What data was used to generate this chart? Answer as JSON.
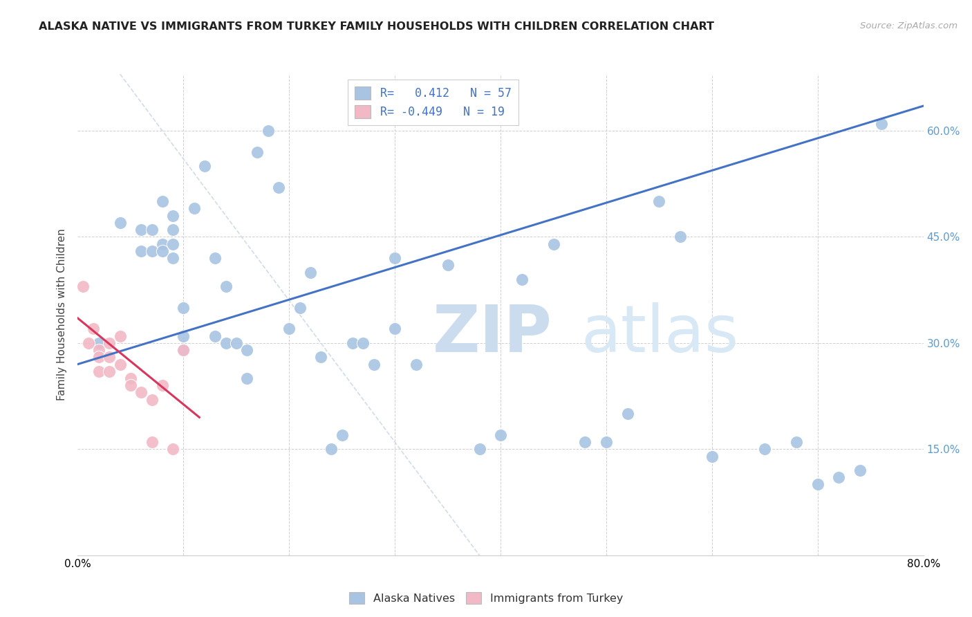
{
  "title": "ALASKA NATIVE VS IMMIGRANTS FROM TURKEY FAMILY HOUSEHOLDS WITH CHILDREN CORRELATION CHART",
  "source": "Source: ZipAtlas.com",
  "ylabel": "Family Households with Children",
  "xlim": [
    0.0,
    0.8
  ],
  "ylim": [
    0.0,
    0.68
  ],
  "xticks": [
    0.0,
    0.1,
    0.2,
    0.3,
    0.4,
    0.5,
    0.6,
    0.7,
    0.8
  ],
  "xticklabels": [
    "0.0%",
    "",
    "",
    "",
    "",
    "",
    "",
    "",
    "80.0%"
  ],
  "yticks": [
    0.0,
    0.15,
    0.3,
    0.45,
    0.6
  ],
  "yticklabels_right": [
    "",
    "15.0%",
    "30.0%",
    "45.0%",
    "60.0%"
  ],
  "blue_color": "#a8c4e2",
  "pink_color": "#f2b8c6",
  "blue_line_color": "#4472c4",
  "pink_line_color": "#d9365e",
  "diag_line_color": "#d0dde8",
  "legend_R_blue": "0.412",
  "legend_N_blue": "57",
  "legend_R_pink": "-0.449",
  "legend_N_pink": "19",
  "legend_label_blue": "Alaska Natives",
  "legend_label_pink": "Immigrants from Turkey",
  "blue_scatter_x": [
    0.02,
    0.04,
    0.06,
    0.06,
    0.07,
    0.07,
    0.08,
    0.08,
    0.08,
    0.09,
    0.09,
    0.09,
    0.09,
    0.1,
    0.1,
    0.1,
    0.11,
    0.12,
    0.13,
    0.13,
    0.14,
    0.14,
    0.15,
    0.16,
    0.16,
    0.17,
    0.18,
    0.19,
    0.2,
    0.21,
    0.22,
    0.23,
    0.24,
    0.25,
    0.26,
    0.27,
    0.28,
    0.3,
    0.3,
    0.32,
    0.35,
    0.38,
    0.4,
    0.42,
    0.45,
    0.48,
    0.5,
    0.52,
    0.55,
    0.57,
    0.6,
    0.65,
    0.68,
    0.7,
    0.72,
    0.74,
    0.76
  ],
  "blue_scatter_y": [
    0.3,
    0.47,
    0.46,
    0.43,
    0.43,
    0.46,
    0.44,
    0.43,
    0.5,
    0.48,
    0.46,
    0.44,
    0.42,
    0.29,
    0.31,
    0.35,
    0.49,
    0.55,
    0.42,
    0.31,
    0.3,
    0.38,
    0.3,
    0.25,
    0.29,
    0.57,
    0.6,
    0.52,
    0.32,
    0.35,
    0.4,
    0.28,
    0.15,
    0.17,
    0.3,
    0.3,
    0.27,
    0.32,
    0.42,
    0.27,
    0.41,
    0.15,
    0.17,
    0.39,
    0.44,
    0.16,
    0.16,
    0.2,
    0.5,
    0.45,
    0.14,
    0.15,
    0.16,
    0.1,
    0.11,
    0.12,
    0.61
  ],
  "pink_scatter_x": [
    0.005,
    0.01,
    0.015,
    0.02,
    0.02,
    0.02,
    0.03,
    0.03,
    0.03,
    0.04,
    0.04,
    0.05,
    0.05,
    0.06,
    0.07,
    0.07,
    0.08,
    0.09,
    0.1
  ],
  "pink_scatter_y": [
    0.38,
    0.3,
    0.32,
    0.29,
    0.28,
    0.26,
    0.3,
    0.28,
    0.26,
    0.31,
    0.27,
    0.25,
    0.24,
    0.23,
    0.22,
    0.16,
    0.24,
    0.15,
    0.29
  ],
  "blue_line_x": [
    0.0,
    0.8
  ],
  "blue_line_y": [
    0.27,
    0.635
  ],
  "pink_line_x": [
    0.0,
    0.115
  ],
  "pink_line_y": [
    0.335,
    0.195
  ],
  "diag_line_x": [
    0.04,
    0.38
  ],
  "diag_line_y": [
    0.68,
    0.0
  ]
}
